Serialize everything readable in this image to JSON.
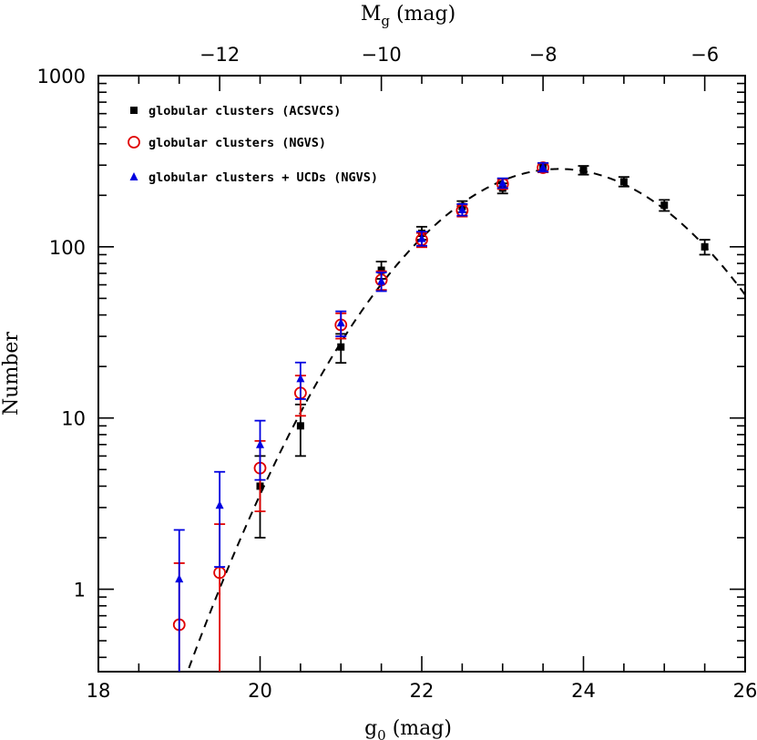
{
  "chart_data": {
    "type": "scatter",
    "xlabel": {
      "main": "g",
      "sub": "0",
      "unit": " (mag)"
    },
    "ylabel": "Number",
    "top_xlabel": {
      "main": "M",
      "sub": "g",
      "unit": " (mag)"
    },
    "xlim": [
      18,
      26
    ],
    "ylim": [
      0.33,
      1000
    ],
    "y_scale": "log",
    "x_ticks": [
      "18",
      "20",
      "22",
      "24",
      "26"
    ],
    "y_ticks": [
      "1",
      "10",
      "100",
      "1000"
    ],
    "top_x_ticks": [
      "−12",
      "−10",
      "−8",
      "−6"
    ],
    "top_x_tick_values": [
      -12,
      -10,
      -8,
      -6
    ],
    "legend_position": "top-left",
    "series": [
      {
        "name": "globular clusters (ACSVCS)",
        "marker": "square",
        "color": "#000000",
        "points": [
          {
            "x": 20.0,
            "y": 4.0,
            "lo": 2.0,
            "hi": 6.0
          },
          {
            "x": 20.5,
            "y": 9.0,
            "lo": 6.0,
            "hi": 12.0
          },
          {
            "x": 21.0,
            "y": 26.0,
            "lo": 21.0,
            "hi": 31.0
          },
          {
            "x": 21.5,
            "y": 73.0,
            "lo": 65.0,
            "hi": 82.0
          },
          {
            "x": 22.0,
            "y": 120.0,
            "lo": 110.0,
            "hi": 131.0
          },
          {
            "x": 22.5,
            "y": 172.0,
            "lo": 159.0,
            "hi": 185.0
          },
          {
            "x": 23.0,
            "y": 220.0,
            "lo": 205.0,
            "hi": 235.0
          },
          {
            "x": 23.5,
            "y": 290.0,
            "lo": 273.0,
            "hi": 307.0
          },
          {
            "x": 24.0,
            "y": 280.0,
            "lo": 264.0,
            "hi": 297.0
          },
          {
            "x": 24.5,
            "y": 240.0,
            "lo": 225.0,
            "hi": 256.0
          },
          {
            "x": 25.0,
            "y": 175.0,
            "lo": 162.0,
            "hi": 188.0
          },
          {
            "x": 25.5,
            "y": 100.0,
            "lo": 90.0,
            "hi": 110.0
          }
        ]
      },
      {
        "name": "globular clusters (NGVS)",
        "marker": "open-circle",
        "color": "#e00000",
        "points": [
          {
            "x": 19.0,
            "y": 0.62,
            "lo": 0.0,
            "hi": 1.42
          },
          {
            "x": 19.5,
            "y": 1.25,
            "lo": 0.0,
            "hi": 2.4
          },
          {
            "x": 20.0,
            "y": 5.1,
            "lo": 2.85,
            "hi": 7.35
          },
          {
            "x": 20.5,
            "y": 14.0,
            "lo": 10.3,
            "hi": 17.7
          },
          {
            "x": 21.0,
            "y": 35.0,
            "lo": 29.1,
            "hi": 40.9
          },
          {
            "x": 21.5,
            "y": 64.0,
            "lo": 56.0,
            "hi": 72.0
          },
          {
            "x": 22.0,
            "y": 110.0,
            "lo": 99.5,
            "hi": 120.5
          },
          {
            "x": 22.5,
            "y": 163.0,
            "lo": 150.2,
            "hi": 175.8
          },
          {
            "x": 23.0,
            "y": 233.0,
            "lo": 217.7,
            "hi": 248.3
          },
          {
            "x": 23.5,
            "y": 290.0,
            "lo": 273.0,
            "hi": 307.0
          }
        ]
      },
      {
        "name": "globular clusters + UCDs (NGVS)",
        "marker": "triangle",
        "color": "#0000e0",
        "points": [
          {
            "x": 19.0,
            "y": 1.15,
            "lo": 0.0,
            "hi": 2.22
          },
          {
            "x": 19.5,
            "y": 3.1,
            "lo": 1.35,
            "hi": 4.85
          },
          {
            "x": 20.0,
            "y": 7.0,
            "lo": 4.35,
            "hi": 9.65
          },
          {
            "x": 20.5,
            "y": 17.0,
            "lo": 12.9,
            "hi": 21.1
          },
          {
            "x": 21.0,
            "y": 36.0,
            "lo": 30.0,
            "hi": 42.0
          },
          {
            "x": 21.5,
            "y": 63.0,
            "lo": 55.1,
            "hi": 70.9
          },
          {
            "x": 22.0,
            "y": 112.0,
            "lo": 101.4,
            "hi": 122.6
          },
          {
            "x": 22.5,
            "y": 165.0,
            "lo": 152.2,
            "hi": 177.8
          },
          {
            "x": 23.0,
            "y": 236.0,
            "lo": 220.6,
            "hi": 251.4
          },
          {
            "x": 23.5,
            "y": 292.0,
            "lo": 274.9,
            "hi": 309.1
          }
        ]
      }
    ],
    "fit_curve": {
      "style": "dashed",
      "color": "#000000",
      "peak_x": 23.7,
      "peak_y": 285,
      "sigma": 1.25
    }
  }
}
